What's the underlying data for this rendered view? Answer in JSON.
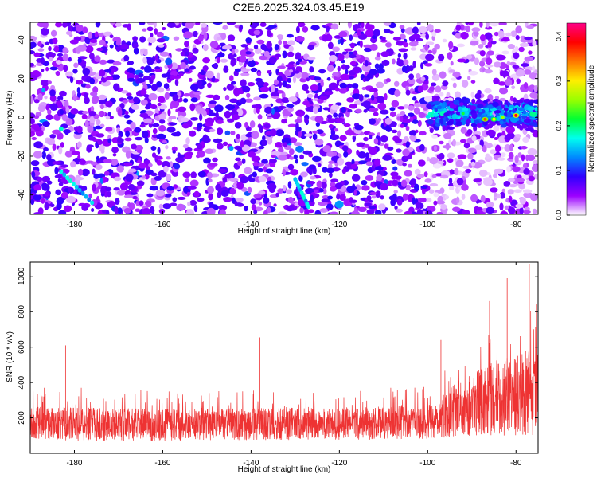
{
  "title": "C2E6.2025.324.03.45.E19",
  "chart_data": [
    {
      "type": "heatmap",
      "title": "C2E6.2025.324.03.45.E19",
      "xlabel": "Height of straight line (km)",
      "ylabel": "Frequency (Hz)",
      "xlim": [
        -190,
        -75
      ],
      "ylim": [
        -50,
        49
      ],
      "xticks": [
        -180,
        -160,
        -140,
        -120,
        -100,
        -80
      ],
      "yticks": [
        -40,
        -20,
        0,
        20,
        40
      ],
      "colorbar": {
        "label": "Normalized spectral amplitude",
        "range": [
          0.0,
          0.43
        ],
        "ticks": [
          0.0,
          0.1,
          0.2,
          0.3,
          0.4
        ],
        "colors": [
          "#ffffff",
          "#9b00ff",
          "#3000ff",
          "#0088ff",
          "#00ffee",
          "#00ff33",
          "#99ff00",
          "#ffee00",
          "#ff7700",
          "#ff0000",
          "#ff0088"
        ]
      },
      "features": [
        {
          "description_id": "band",
          "x_range": [
            -100,
            -75
          ],
          "y_center": 2,
          "y_halfwidth": 8,
          "peak_value": 0.4
        },
        {
          "description_id": "streak1",
          "x": [
            -183,
            -176
          ],
          "y": [
            -28,
            -44
          ],
          "value": 0.15
        },
        {
          "description_id": "streak2",
          "x": [
            -130,
            -127
          ],
          "y": [
            -32,
            -46
          ],
          "value": 0.15
        }
      ]
    },
    {
      "type": "line",
      "xlabel": "Height of straight line (km)",
      "ylabel": "SNR (10 * v/v)",
      "xlim": [
        -190,
        -75
      ],
      "ylim": [
        0,
        1080
      ],
      "xticks": [
        -180,
        -160,
        -140,
        -120,
        -100,
        -80
      ],
      "yticks": [
        200,
        400,
        600,
        800,
        1000
      ],
      "color": "#ee3333",
      "envelope": [
        {
          "x": -190,
          "base": 175,
          "spread": 90
        },
        {
          "x": -180,
          "base": 165,
          "spread": 95
        },
        {
          "x": -160,
          "base": 160,
          "spread": 90
        },
        {
          "x": -140,
          "base": 165,
          "spread": 90
        },
        {
          "x": -120,
          "base": 165,
          "spread": 90
        },
        {
          "x": -100,
          "base": 175,
          "spread": 95
        },
        {
          "x": -95,
          "base": 230,
          "spread": 140
        },
        {
          "x": -90,
          "base": 280,
          "spread": 180
        },
        {
          "x": -85,
          "base": 310,
          "spread": 210
        },
        {
          "x": -80,
          "base": 330,
          "spread": 230
        },
        {
          "x": -75,
          "base": 340,
          "spread": 240
        }
      ],
      "peaks": [
        {
          "x": -182,
          "y": 610
        },
        {
          "x": -138,
          "y": 655
        },
        {
          "x": -97,
          "y": 640
        },
        {
          "x": -86,
          "y": 860
        },
        {
          "x": -82,
          "y": 990
        },
        {
          "x": -77,
          "y": 1070
        }
      ]
    }
  ]
}
